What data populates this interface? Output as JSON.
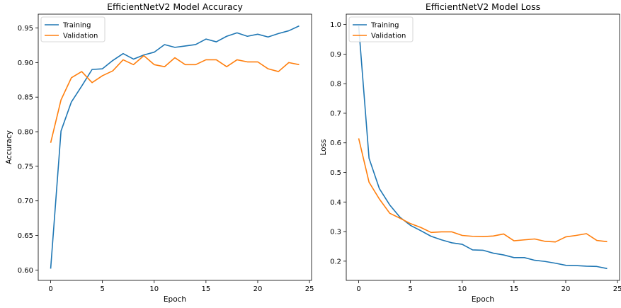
{
  "chart_data": [
    {
      "type": "line",
      "title": "EfficientNetV2 Model Accuracy",
      "xlabel": "Epoch",
      "ylabel": "Accuracy",
      "xlim": [
        -1.2,
        25.2
      ],
      "ylim": [
        0.585,
        0.97
      ],
      "xticks": [
        0,
        5,
        10,
        15,
        20,
        25
      ],
      "yticks": [
        0.6,
        0.65,
        0.7,
        0.75,
        0.8,
        0.85,
        0.9,
        0.95
      ],
      "ytick_labels": [
        "0.60",
        "0.65",
        "0.70",
        "0.75",
        "0.80",
        "0.85",
        "0.90",
        "0.95"
      ],
      "legend_position": "upper-left",
      "x": [
        0,
        1,
        2,
        3,
        4,
        5,
        6,
        7,
        8,
        9,
        10,
        11,
        12,
        13,
        14,
        15,
        16,
        17,
        18,
        19,
        20,
        21,
        22,
        23,
        24
      ],
      "series": [
        {
          "name": "Training",
          "color": "#1f77b4",
          "values": [
            0.602,
            0.801,
            0.843,
            0.866,
            0.89,
            0.891,
            0.903,
            0.913,
            0.905,
            0.911,
            0.915,
            0.926,
            0.922,
            0.924,
            0.926,
            0.934,
            0.93,
            0.938,
            0.943,
            0.938,
            0.941,
            0.937,
            0.942,
            0.946,
            0.953
          ]
        },
        {
          "name": "Validation",
          "color": "#ff7f0e",
          "values": [
            0.784,
            0.846,
            0.878,
            0.887,
            0.871,
            0.881,
            0.888,
            0.904,
            0.897,
            0.91,
            0.897,
            0.894,
            0.907,
            0.897,
            0.897,
            0.904,
            0.904,
            0.894,
            0.904,
            0.901,
            0.901,
            0.891,
            0.887,
            0.9,
            0.897
          ]
        }
      ]
    },
    {
      "type": "line",
      "title": "EfficientNetV2 Model Loss",
      "xlabel": "Epoch",
      "ylabel": "Loss",
      "xlim": [
        -1.2,
        25.2
      ],
      "ylim": [
        0.135,
        1.035
      ],
      "xticks": [
        0,
        5,
        10,
        15,
        20,
        25
      ],
      "yticks": [
        0.2,
        0.3,
        0.4,
        0.5,
        0.6,
        0.7,
        0.8,
        0.9,
        1.0
      ],
      "ytick_labels": [
        "0.2",
        "0.3",
        "0.4",
        "0.5",
        "0.6",
        "0.7",
        "0.8",
        "0.9",
        "1.0"
      ],
      "legend_position": "upper-left",
      "x": [
        0,
        1,
        2,
        3,
        4,
        5,
        6,
        7,
        8,
        9,
        10,
        11,
        12,
        13,
        14,
        15,
        16,
        17,
        18,
        19,
        20,
        21,
        22,
        23,
        24
      ],
      "series": [
        {
          "name": "Training",
          "color": "#1f77b4",
          "values": [
            0.995,
            0.548,
            0.445,
            0.39,
            0.348,
            0.321,
            0.303,
            0.284,
            0.272,
            0.262,
            0.257,
            0.238,
            0.237,
            0.227,
            0.221,
            0.212,
            0.212,
            0.203,
            0.199,
            0.193,
            0.186,
            0.185,
            0.183,
            0.182,
            0.175
          ]
        },
        {
          "name": "Validation",
          "color": "#ff7f0e",
          "values": [
            0.615,
            0.467,
            0.41,
            0.362,
            0.345,
            0.327,
            0.314,
            0.297,
            0.299,
            0.299,
            0.287,
            0.284,
            0.283,
            0.285,
            0.292,
            0.269,
            0.272,
            0.275,
            0.267,
            0.265,
            0.282,
            0.287,
            0.293,
            0.27,
            0.266
          ]
        }
      ]
    }
  ]
}
